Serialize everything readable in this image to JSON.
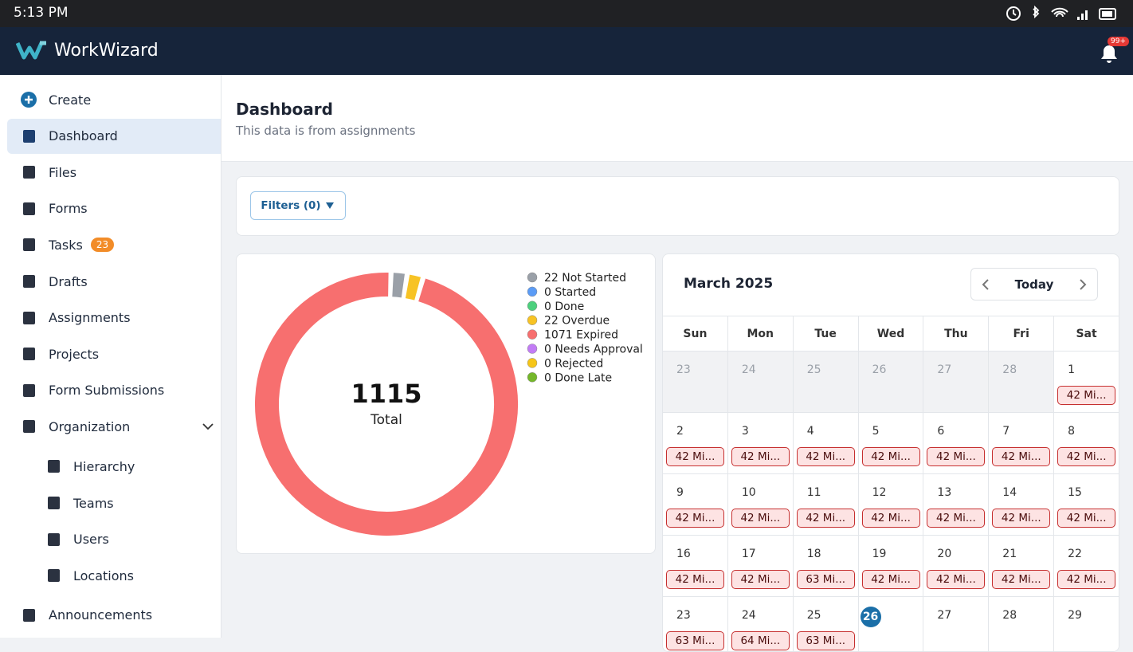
{
  "status_bar": {
    "time": "5:13 PM"
  },
  "header": {
    "app_name": "WorkWizard",
    "notification_badge": "99+"
  },
  "sidebar": {
    "items": [
      {
        "label": "Create"
      },
      {
        "label": "Dashboard",
        "active": true
      },
      {
        "label": "Files"
      },
      {
        "label": "Forms"
      },
      {
        "label": "Tasks",
        "badge": 23
      },
      {
        "label": "Drafts"
      },
      {
        "label": "Assignments"
      },
      {
        "label": "Projects"
      },
      {
        "label": "Form Submissions"
      },
      {
        "label": "Organization",
        "expanded": true,
        "children": [
          {
            "label": "Hierarchy"
          },
          {
            "label": "Teams"
          },
          {
            "label": "Users"
          },
          {
            "label": "Locations"
          }
        ]
      },
      {
        "label": "Announcements"
      }
    ]
  },
  "page": {
    "title": "Dashboard",
    "subtitle": "This data is from assignments"
  },
  "filters": {
    "button": "Filters (0)"
  },
  "chart_data": {
    "type": "donut",
    "categories": [
      "Not Started",
      "Started",
      "Done",
      "Overdue",
      "Expired",
      "Needs Approval",
      "Rejected",
      "Done Late"
    ],
    "values": [
      22,
      0,
      0,
      22,
      1071,
      0,
      0,
      0
    ],
    "colors": [
      "#9aa0a8",
      "#5b9cf6",
      "#4cd07d",
      "#f7c325",
      "#f76f6f",
      "#c27cf5",
      "#f5c518",
      "#74b72a"
    ],
    "center_value": 1115,
    "center_label": "Total"
  },
  "calendar": {
    "title": "March 2025",
    "today_button": "Today",
    "weekdays": [
      "Sun",
      "Mon",
      "Tue",
      "Wed",
      "Thu",
      "Fri",
      "Sat"
    ],
    "weeks": [
      [
        {
          "day": 23,
          "muted": true
        },
        {
          "day": 24,
          "muted": true
        },
        {
          "day": 25,
          "muted": true
        },
        {
          "day": 26,
          "muted": true
        },
        {
          "day": 27,
          "muted": true
        },
        {
          "day": 28,
          "muted": true
        },
        {
          "day": 1,
          "event": "42 Mi..."
        }
      ],
      [
        {
          "day": 2,
          "event": "42 Mi..."
        },
        {
          "day": 3,
          "event": "42 Mi..."
        },
        {
          "day": 4,
          "event": "42 Mi..."
        },
        {
          "day": 5,
          "event": "42 Mi..."
        },
        {
          "day": 6,
          "event": "42 Mi..."
        },
        {
          "day": 7,
          "event": "42 Mi..."
        },
        {
          "day": 8,
          "event": "42 Mi..."
        }
      ],
      [
        {
          "day": 9,
          "event": "42 Mi..."
        },
        {
          "day": 10,
          "event": "42 Mi..."
        },
        {
          "day": 11,
          "event": "42 Mi..."
        },
        {
          "day": 12,
          "event": "42 Mi..."
        },
        {
          "day": 13,
          "event": "42 Mi..."
        },
        {
          "day": 14,
          "event": "42 Mi..."
        },
        {
          "day": 15,
          "event": "42 Mi..."
        }
      ],
      [
        {
          "day": 16,
          "event": "42 Mi..."
        },
        {
          "day": 17,
          "event": "42 Mi..."
        },
        {
          "day": 18,
          "event": "63 Mi..."
        },
        {
          "day": 19,
          "event": "42 Mi..."
        },
        {
          "day": 20,
          "event": "42 Mi..."
        },
        {
          "day": 21,
          "event": "42 Mi..."
        },
        {
          "day": 22,
          "event": "42 Mi..."
        }
      ],
      [
        {
          "day": 23,
          "event": "63 Mi..."
        },
        {
          "day": 24,
          "event": "64 Mi..."
        },
        {
          "day": 25,
          "event": "63 Mi..."
        },
        {
          "day": 26,
          "today": true
        },
        {
          "day": 27
        },
        {
          "day": 28
        },
        {
          "day": 29
        }
      ]
    ]
  }
}
